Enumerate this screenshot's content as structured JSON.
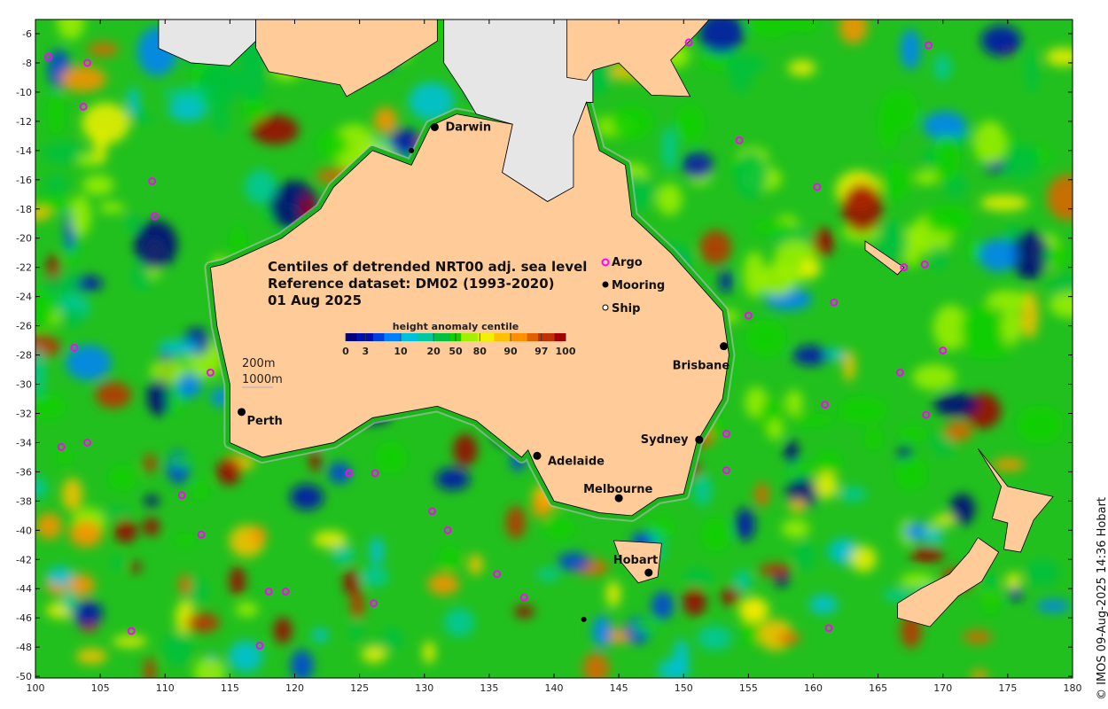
{
  "title_lines": [
    "Centiles of detrended NRT00 adj. sea level",
    "Reference dataset: DM02 (1993-2020)",
    "01 Aug 2025"
  ],
  "colorbar": {
    "label": "height anomaly centile",
    "ticks": [
      "0",
      "3",
      "10",
      "20",
      "50",
      "80",
      "90",
      "97",
      "100"
    ],
    "colors": [
      "#00007f",
      "#0010b0",
      "#0040e0",
      "#0080ff",
      "#00c0e0",
      "#00c8a0",
      "#00c040",
      "#10d000",
      "#a0f000",
      "#f0f000",
      "#ffc000",
      "#ff9000",
      "#e06000",
      "#c03000",
      "#a00000"
    ]
  },
  "legend": {
    "argo": "Argo",
    "mooring": "Mooring",
    "ship": "Ship"
  },
  "isobaths": [
    "200m",
    "1000m"
  ],
  "colors": {
    "land": "#ffcc99",
    "masked": "#e6e6e6",
    "ocean": "#22c01e",
    "argo": "#ff00ff",
    "isobath": "#aaaaaa"
  },
  "axes": {
    "lon_ticks": [
      100,
      105,
      110,
      115,
      120,
      125,
      130,
      135,
      140,
      145,
      150,
      155,
      160,
      165,
      170,
      175,
      180
    ],
    "lat_ticks": [
      -6,
      -8,
      -10,
      -12,
      -14,
      -16,
      -18,
      -20,
      -22,
      -24,
      -26,
      -28,
      -30,
      -32,
      -34,
      -36,
      -38,
      -40,
      -42,
      -44,
      -46,
      -48,
      -50
    ],
    "lon_range": [
      100,
      180
    ],
    "lat_range": [
      -5,
      -50
    ]
  },
  "cities": [
    {
      "name": "Darwin",
      "lon": 130.8,
      "lat": -12.4,
      "dx": 12,
      "dy": 4
    },
    {
      "name": "Brisbane",
      "lon": 153.1,
      "lat": -27.4,
      "dx": -58,
      "dy": 26
    },
    {
      "name": "Perth",
      "lon": 115.9,
      "lat": -31.9,
      "dx": 6,
      "dy": 14
    },
    {
      "name": "Sydney",
      "lon": 151.2,
      "lat": -33.8,
      "dx": -66,
      "dy": 4
    },
    {
      "name": "Adelaide",
      "lon": 138.7,
      "lat": -34.9,
      "dx": 12,
      "dy": 10
    },
    {
      "name": "Melbourne",
      "lon": 145.0,
      "lat": -37.8,
      "dx": -40,
      "dy": -6
    },
    {
      "name": "Hobart",
      "lon": 147.3,
      "lat": -42.9,
      "dx": -40,
      "dy": -10
    }
  ],
  "argo": [
    [
      101,
      -7.6
    ],
    [
      104,
      -8
    ],
    [
      103.7,
      -11
    ],
    [
      109,
      -16.1
    ],
    [
      109.2,
      -18.5
    ],
    [
      103,
      -27.5
    ],
    [
      113.5,
      -29.2
    ],
    [
      102,
      -34.3
    ],
    [
      104,
      -34
    ],
    [
      111.3,
      -37.6
    ],
    [
      112.8,
      -40.3
    ],
    [
      124.2,
      -36.1
    ],
    [
      126.2,
      -36.1
    ],
    [
      130.6,
      -38.7
    ],
    [
      131.8,
      -40
    ],
    [
      135.6,
      -43
    ],
    [
      137.7,
      -44.6
    ],
    [
      126.1,
      -45
    ],
    [
      118,
      -44.2
    ],
    [
      119.3,
      -44.2
    ],
    [
      117.3,
      -47.9
    ],
    [
      107.4,
      -46.9
    ],
    [
      150.4,
      -6.6
    ],
    [
      168.9,
      -6.8
    ],
    [
      154.3,
      -13.3
    ],
    [
      160.3,
      -16.5
    ],
    [
      155,
      -25.3
    ],
    [
      161.6,
      -24.4
    ],
    [
      167,
      -22
    ],
    [
      168.6,
      -21.8
    ],
    [
      170,
      -27.7
    ],
    [
      166.7,
      -29.2
    ],
    [
      160.9,
      -31.4
    ],
    [
      168.7,
      -32.1
    ],
    [
      153.3,
      -33.4
    ],
    [
      153.3,
      -35.9
    ],
    [
      161.2,
      -46.7
    ]
  ],
  "moorings": [
    [
      129,
      -14
    ],
    [
      142.3,
      -46.1
    ]
  ],
  "credit": "© IMOS 09-Aug-2025 14:36 Hobart"
}
